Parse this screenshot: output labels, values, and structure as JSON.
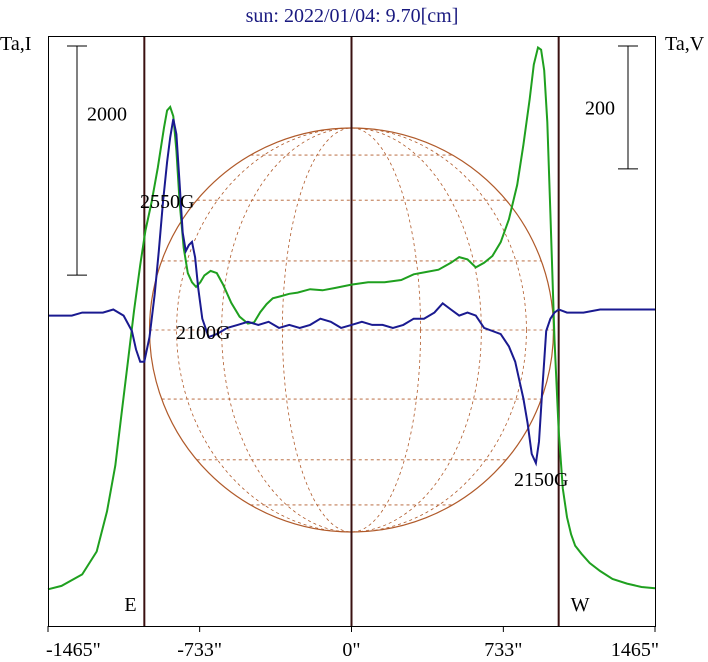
{
  "chart_data": {
    "type": "line",
    "title": "sun: 2022/01/04: 9.70[cm]",
    "left_axis_label": "Ta,I",
    "right_axis_label": "Ta,V",
    "left_scale_bar": {
      "label": "2000",
      "value": 2000
    },
    "right_scale_bar": {
      "label": "200",
      "value": 200
    },
    "x_unit": "arcsec",
    "xlim": [
      -1465,
      1465
    ],
    "x_ticks": [
      -1465,
      -733,
      0,
      733,
      1465
    ],
    "x_tick_labels": [
      "-1465\"",
      "-733\"",
      "0\"",
      "733\"",
      "1465\""
    ],
    "limb_markers": [
      {
        "label": "E",
        "x": -1000
      },
      {
        "label": "W",
        "x": 1000
      }
    ],
    "solar_disk": {
      "radius_arcsec": 975,
      "grid": true,
      "color": "#b05a2a"
    },
    "annotations": [
      {
        "label": "2550G",
        "x": -1000,
        "y": 2850
      },
      {
        "label": "2100G",
        "x": -860,
        "y": 1730
      },
      {
        "label": "2150G",
        "x": 820,
        "y": 280
      }
    ],
    "series": [
      {
        "role": "intensity",
        "color": "#1fa01f",
        "ylim": [
          -300,
          4850
        ],
        "x": [
          -1465,
          -1400,
          -1300,
          -1230,
          -1180,
          -1140,
          -1110,
          -1080,
          -1050,
          -1020,
          -995,
          -965,
          -935,
          -905,
          -890,
          -875,
          -860,
          -845,
          -830,
          -810,
          -790,
          -770,
          -750,
          -730,
          -710,
          -680,
          -650,
          -620,
          -580,
          -540,
          -500,
          -470,
          -440,
          -410,
          -380,
          -340,
          -300,
          -260,
          -200,
          -140,
          -80,
          0,
          80,
          160,
          240,
          300,
          360,
          420,
          480,
          520,
          560,
          600,
          640,
          680,
          720,
          760,
          800,
          830,
          860,
          880,
          900,
          915,
          930,
          945,
          960,
          980,
          1000,
          1020,
          1040,
          1060,
          1080,
          1110,
          1150,
          1200,
          1260,
          1330,
          1400,
          1465
        ],
        "y": [
          20,
          50,
          150,
          350,
          700,
          1100,
          1550,
          2000,
          2450,
          2850,
          3150,
          3400,
          3700,
          4050,
          4200,
          4230,
          4150,
          3850,
          3400,
          3000,
          2780,
          2700,
          2660,
          2700,
          2760,
          2800,
          2780,
          2680,
          2520,
          2400,
          2340,
          2350,
          2440,
          2510,
          2560,
          2580,
          2600,
          2610,
          2640,
          2630,
          2650,
          2680,
          2700,
          2700,
          2720,
          2770,
          2790,
          2810,
          2870,
          2920,
          2900,
          2830,
          2870,
          2930,
          3050,
          3250,
          3550,
          3900,
          4300,
          4600,
          4750,
          4730,
          4550,
          4100,
          3300,
          2200,
          1400,
          900,
          650,
          500,
          400,
          330,
          250,
          180,
          110,
          70,
          40,
          30
        ]
      },
      {
        "role": "circular_polarization",
        "color": "#1a1a90",
        "ylim": [
          -500,
          460
        ],
        "x": [
          -1465,
          -1350,
          -1300,
          -1250,
          -1200,
          -1150,
          -1100,
          -1060,
          -1040,
          -1020,
          -1000,
          -975,
          -950,
          -930,
          -910,
          -890,
          -875,
          -860,
          -845,
          -830,
          -815,
          -800,
          -785,
          -770,
          -755,
          -740,
          -720,
          -690,
          -650,
          -600,
          -550,
          -500,
          -450,
          -400,
          -350,
          -300,
          -250,
          -200,
          -150,
          -100,
          -50,
          0,
          50,
          100,
          150,
          200,
          250,
          300,
          350,
          400,
          440,
          480,
          520,
          560,
          600,
          640,
          680,
          720,
          760,
          790,
          810,
          830,
          850,
          870,
          890,
          905,
          920,
          940,
          960,
          980,
          1000,
          1040,
          1080,
          1120,
          1200,
          1300,
          1400,
          1465
        ],
        "y": [
          5,
          5,
          10,
          10,
          10,
          15,
          5,
          -20,
          -50,
          -70,
          -70,
          -30,
          40,
          110,
          190,
          255,
          295,
          325,
          300,
          220,
          140,
          110,
          120,
          125,
          100,
          50,
          0,
          -30,
          -25,
          -15,
          -10,
          -5,
          -10,
          -5,
          -15,
          -10,
          -15,
          -10,
          0,
          -5,
          -15,
          -10,
          -5,
          -10,
          -10,
          -15,
          -10,
          0,
          0,
          10,
          25,
          15,
          5,
          10,
          5,
          -15,
          -20,
          -25,
          -45,
          -70,
          -100,
          -130,
          -170,
          -220,
          -235,
          -200,
          -120,
          -20,
          0,
          10,
          15,
          10,
          10,
          10,
          15,
          15,
          15,
          15
        ]
      }
    ]
  }
}
